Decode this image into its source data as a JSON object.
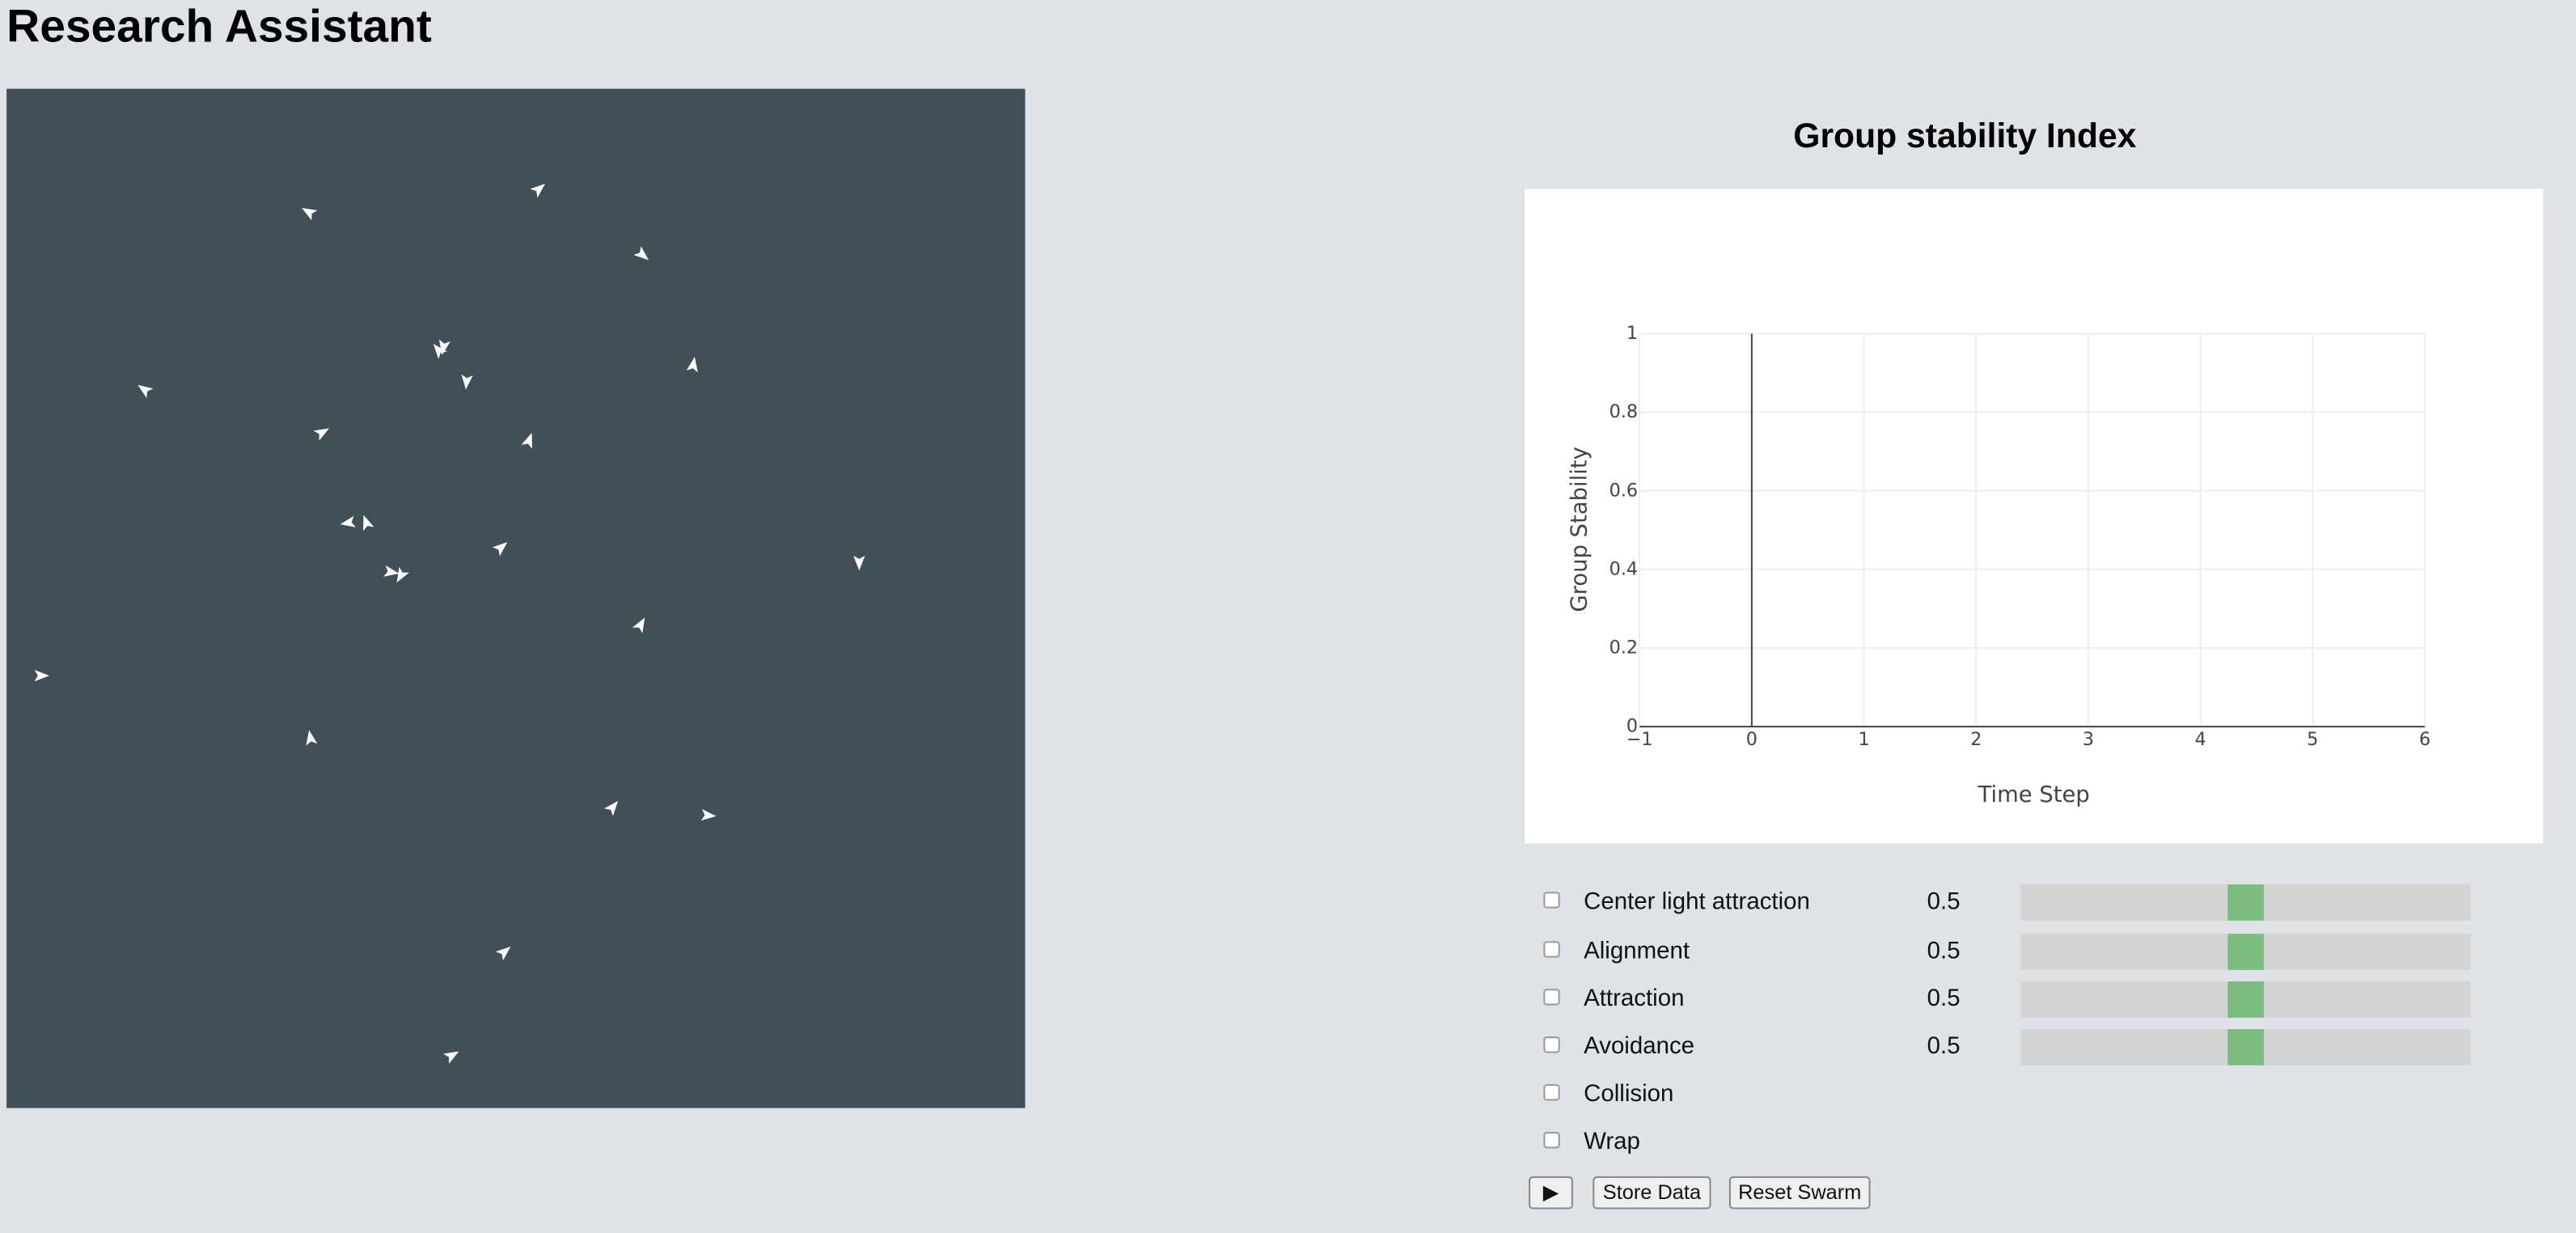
{
  "header": {
    "title": "Research Assistant"
  },
  "chart_data": {
    "type": "line",
    "title": "Group stability Index",
    "x_label": "Time Step",
    "y_label": "Group Stability",
    "series": [],
    "xlim": [
      -1,
      6
    ],
    "xticks": [
      {
        "value": -1,
        "label": "−1"
      },
      0,
      1,
      2,
      3,
      4,
      5,
      6
    ],
    "ylim": [
      0,
      1
    ],
    "yticks": [
      0,
      0.2,
      0.4,
      0.6,
      0.8,
      1
    ],
    "grid": true
  },
  "controls": [
    {
      "label": "Center light attraction",
      "value": 0.5
    },
    {
      "label": "Alignment",
      "value": 0.5
    },
    {
      "label": "Attraction",
      "value": 0.5
    },
    {
      "label": "Avoidance",
      "value": 0.5
    },
    {
      "label": "Collision"
    },
    {
      "label": "Wrap"
    }
  ],
  "buttons": [
    "▶",
    "Store Data",
    "Reset Swarm"
  ]
}
